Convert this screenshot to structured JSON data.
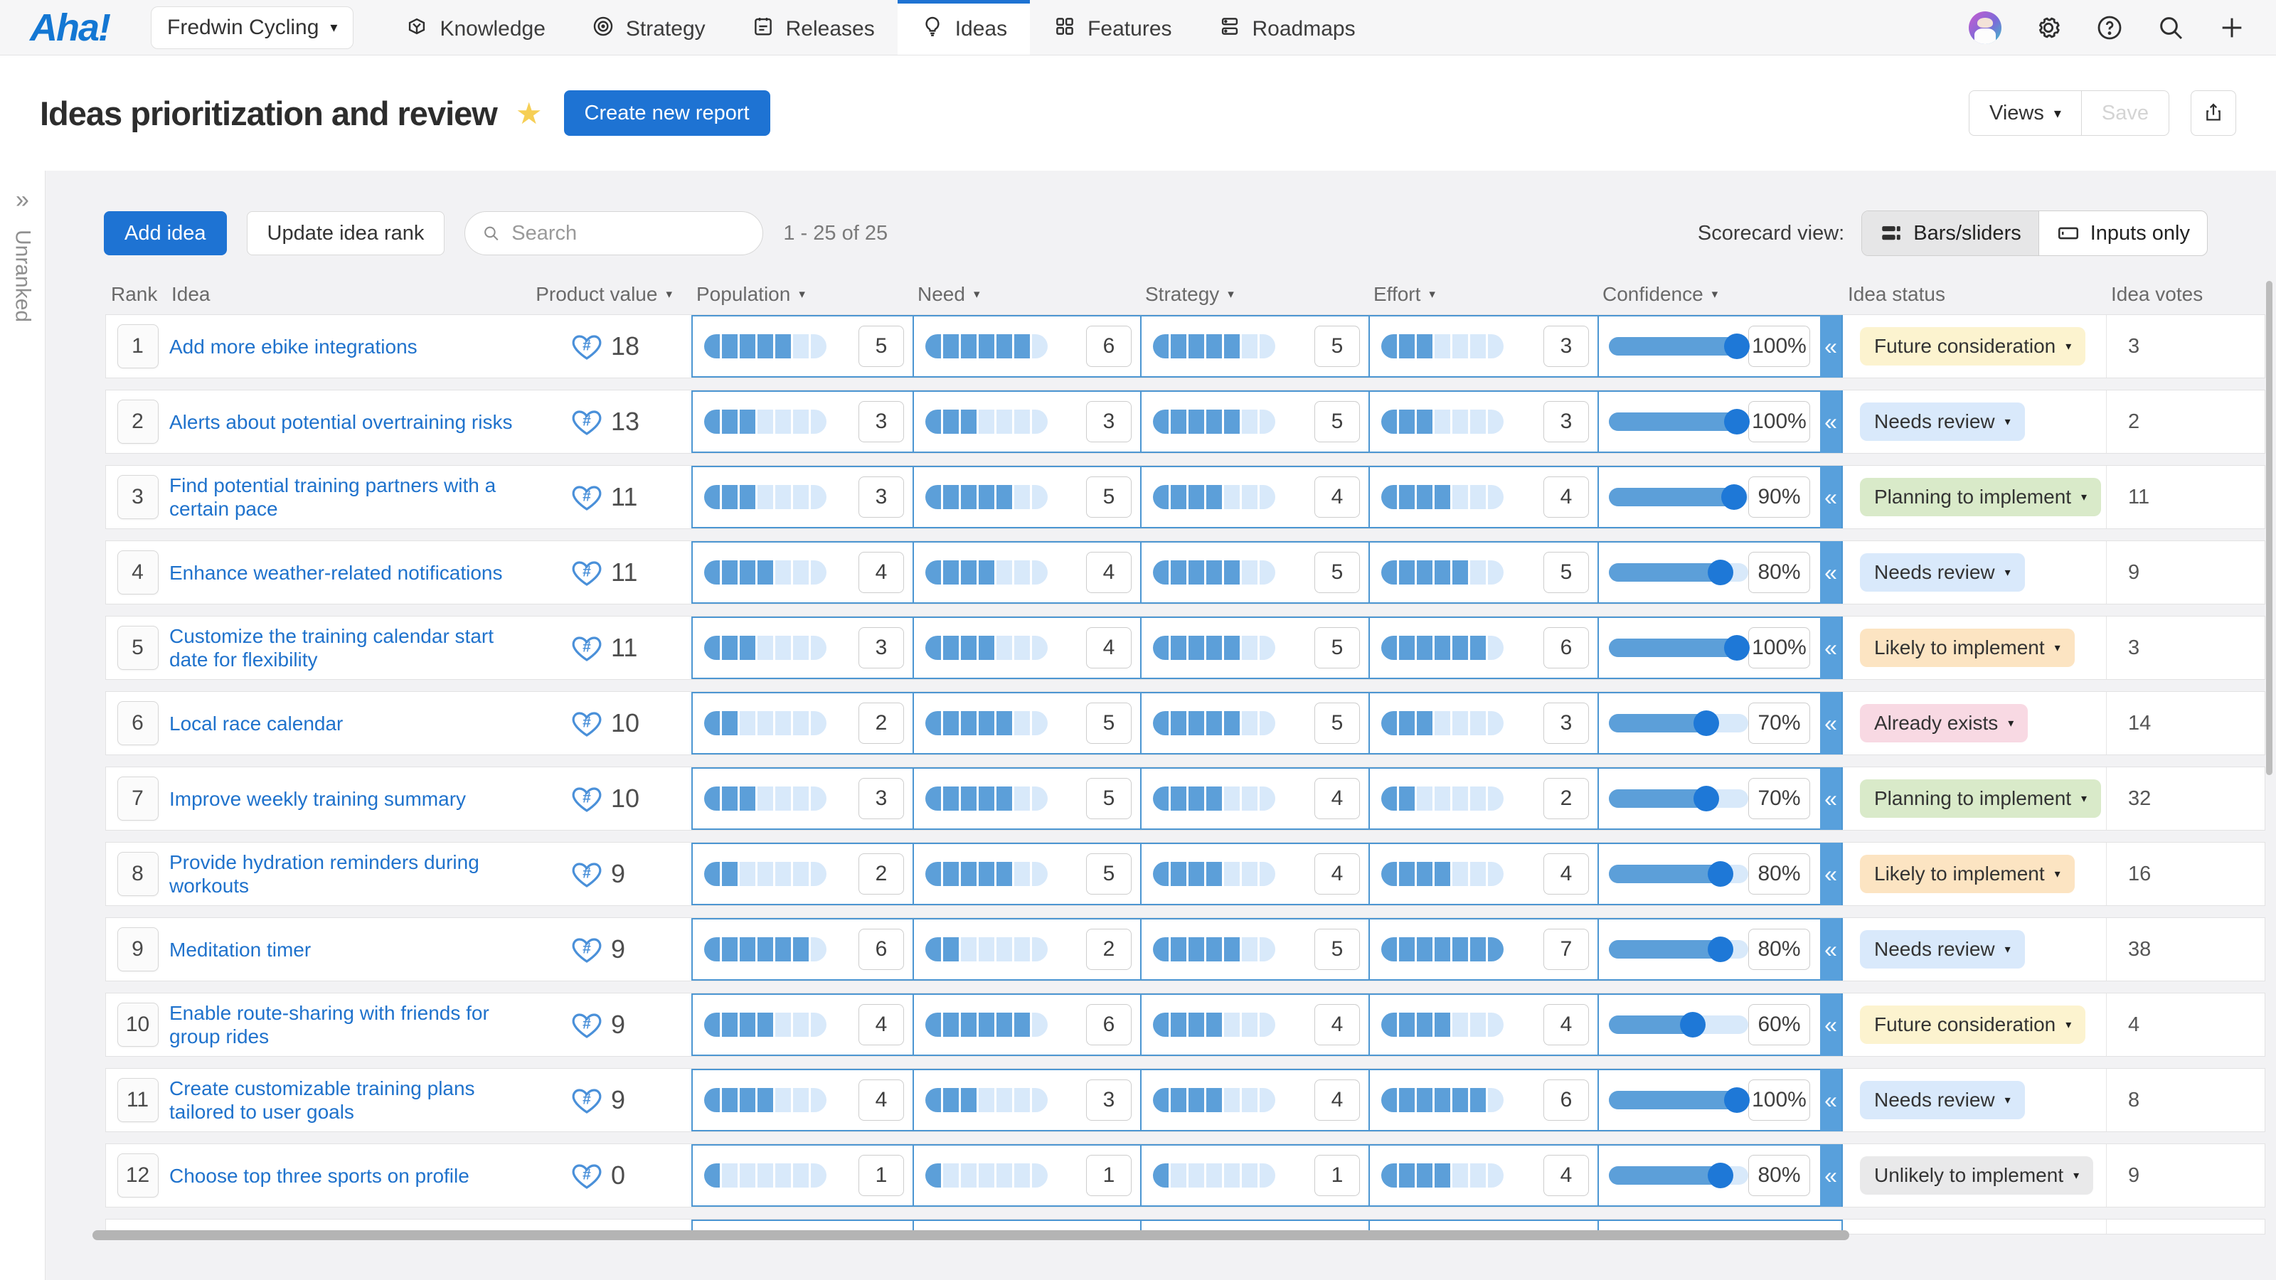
{
  "nav": {
    "logo": "Aha!",
    "workspace": "Fredwin Cycling",
    "items": [
      {
        "label": "Knowledge",
        "icon": "knowledge-icon",
        "active": false
      },
      {
        "label": "Strategy",
        "icon": "strategy-icon",
        "active": false
      },
      {
        "label": "Releases",
        "icon": "releases-icon",
        "active": false
      },
      {
        "label": "Ideas",
        "icon": "ideas-icon",
        "active": true
      },
      {
        "label": "Features",
        "icon": "features-icon",
        "active": false
      },
      {
        "label": "Roadmaps",
        "icon": "roadmaps-icon",
        "active": false
      }
    ]
  },
  "header": {
    "title": "Ideas prioritization and review",
    "create_button": "Create new report",
    "views_button": "Views",
    "save_button": "Save"
  },
  "toolbar": {
    "add_idea": "Add idea",
    "update_rank": "Update idea rank",
    "search_placeholder": "Search",
    "range": "1 - 25 of 25",
    "scorecard_label": "Scorecard view:",
    "bars_option": "Bars/sliders",
    "inputs_option": "Inputs only"
  },
  "side_panel": {
    "label": "Unranked",
    "expand_glyph": "»"
  },
  "table": {
    "columns": [
      {
        "label": "Rank",
        "sortable": false
      },
      {
        "label": "Idea",
        "sortable": false
      },
      {
        "label": "Product value",
        "sortable": true
      },
      {
        "label": "Population",
        "sortable": true
      },
      {
        "label": "Need",
        "sortable": true
      },
      {
        "label": "Strategy",
        "sortable": true
      },
      {
        "label": "Effort",
        "sortable": true
      },
      {
        "label": "Confidence",
        "sortable": true
      },
      {
        "label": "Idea status",
        "sortable": false
      },
      {
        "label": "Idea votes",
        "sortable": false
      }
    ],
    "score_max": 7,
    "rows": [
      {
        "rank": 1,
        "idea": "Add more ebike integrations",
        "product_value": 18,
        "population": 5,
        "need": 6,
        "strategy": 5,
        "effort": 3,
        "confidence": 100,
        "status": "Future consideration",
        "votes": 3
      },
      {
        "rank": 2,
        "idea": "Alerts about potential overtraining risks",
        "product_value": 13,
        "population": 3,
        "need": 3,
        "strategy": 5,
        "effort": 3,
        "confidence": 100,
        "status": "Needs review",
        "votes": 2
      },
      {
        "rank": 3,
        "idea": "Find potential training partners with a certain pace",
        "product_value": 11,
        "population": 3,
        "need": 5,
        "strategy": 4,
        "effort": 4,
        "confidence": 90,
        "status": "Planning to implement",
        "votes": 11
      },
      {
        "rank": 4,
        "idea": "Enhance weather-related notifications",
        "product_value": 11,
        "population": 4,
        "need": 4,
        "strategy": 5,
        "effort": 5,
        "confidence": 80,
        "status": "Needs review",
        "votes": 9
      },
      {
        "rank": 5,
        "idea": "Customize the training calendar start date for flexibility",
        "product_value": 11,
        "population": 3,
        "need": 4,
        "strategy": 5,
        "effort": 6,
        "confidence": 100,
        "status": "Likely to implement",
        "votes": 3
      },
      {
        "rank": 6,
        "idea": "Local race calendar",
        "product_value": 10,
        "population": 2,
        "need": 5,
        "strategy": 5,
        "effort": 3,
        "confidence": 70,
        "status": "Already exists",
        "votes": 14
      },
      {
        "rank": 7,
        "idea": "Improve weekly training summary",
        "product_value": 10,
        "population": 3,
        "need": 5,
        "strategy": 4,
        "effort": 2,
        "confidence": 70,
        "status": "Planning to implement",
        "votes": 32
      },
      {
        "rank": 8,
        "idea": "Provide hydration reminders during workouts",
        "product_value": 9,
        "population": 2,
        "need": 5,
        "strategy": 4,
        "effort": 4,
        "confidence": 80,
        "status": "Likely to implement",
        "votes": 16
      },
      {
        "rank": 9,
        "idea": "Meditation timer",
        "product_value": 9,
        "population": 6,
        "need": 2,
        "strategy": 5,
        "effort": 7,
        "confidence": 80,
        "status": "Needs review",
        "votes": 38
      },
      {
        "rank": 10,
        "idea": "Enable route-sharing with friends for group rides",
        "product_value": 9,
        "population": 4,
        "need": 6,
        "strategy": 4,
        "effort": 4,
        "confidence": 60,
        "status": "Future consideration",
        "votes": 4
      },
      {
        "rank": 11,
        "idea": "Create customizable training plans tailored to user goals",
        "product_value": 9,
        "population": 4,
        "need": 3,
        "strategy": 4,
        "effort": 6,
        "confidence": 100,
        "status": "Needs review",
        "votes": 8
      },
      {
        "rank": 12,
        "idea": "Choose top three sports on profile",
        "product_value": 0,
        "population": 1,
        "need": 1,
        "strategy": 1,
        "effort": 4,
        "confidence": 80,
        "status": "Unlikely to implement",
        "votes": 9
      }
    ]
  },
  "colors": {
    "accent": "#1e73d3",
    "link": "#1f72cc",
    "bar_fill": "#5c9fd9",
    "bar_empty": "#d8e9fa",
    "slider_handle": "#1e78d7",
    "scorecard_cell_border": "#4c96d2",
    "collapse_strip": "#58a0dc",
    "star": "#f6cf55",
    "status": {
      "Future consideration": "#fcf3cf",
      "Needs review": "#d9e9fb",
      "Planning to implement": "#d9eac9",
      "Likely to implement": "#fce4c2",
      "Already exists": "#f8d9e3",
      "Unlikely to implement": "#e9e9ea"
    }
  }
}
